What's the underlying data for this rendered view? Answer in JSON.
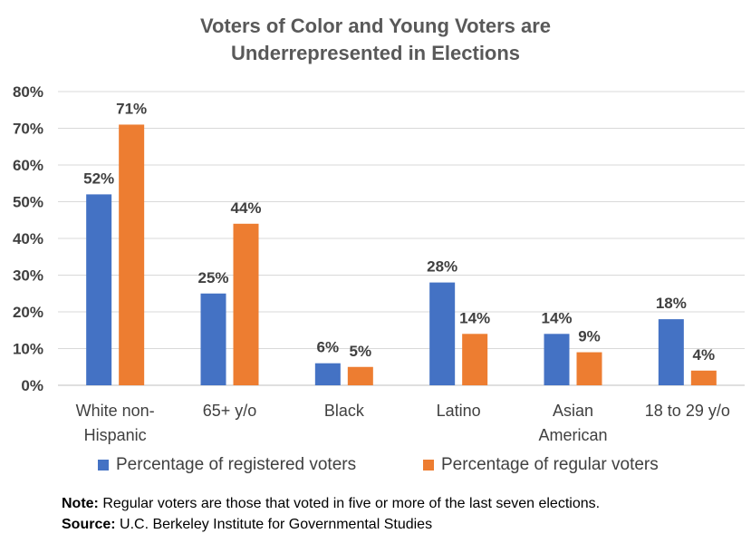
{
  "title_line1": "Voters of Color and Young Voters are",
  "title_line2": "Underrepresented in Elections",
  "colors": {
    "registered": "#4472C4",
    "regular": "#ED7D31",
    "grid": "#D9D9D9"
  },
  "chart_data": {
    "type": "bar",
    "title": "Voters of Color and Young Voters are Underrepresented in Elections",
    "categories": [
      [
        "White non-",
        "Hispanic"
      ],
      [
        "65+ y/o"
      ],
      [
        "Black"
      ],
      [
        "Latino"
      ],
      [
        "Asian",
        "American"
      ],
      [
        "18 to 29 y/o"
      ]
    ],
    "series": [
      {
        "name": "Percentage of registered voters",
        "values": [
          52,
          25,
          6,
          28,
          14,
          18
        ],
        "labels": [
          "52%",
          "25%",
          "6%",
          "28%",
          "14%",
          "18%"
        ]
      },
      {
        "name": "Percentage of regular voters",
        "values": [
          71,
          44,
          5,
          14,
          9,
          4
        ],
        "labels": [
          "71%",
          "44%",
          "5%",
          "14%",
          "9%",
          "4%"
        ]
      }
    ],
    "ylim": [
      0,
      80
    ],
    "yticks": [
      "0%",
      "10%",
      "20%",
      "30%",
      "40%",
      "50%",
      "60%",
      "70%",
      "80%"
    ],
    "xlabel": "",
    "ylabel": "",
    "grid": true,
    "legend": "bottom"
  },
  "notes": {
    "note_label": "Note:",
    "note_text": " Regular voters are those that voted in five or more of the last seven elections.",
    "source_label": "Source:",
    "source_text": " U.C. Berkeley Institute for Governmental Studies"
  }
}
